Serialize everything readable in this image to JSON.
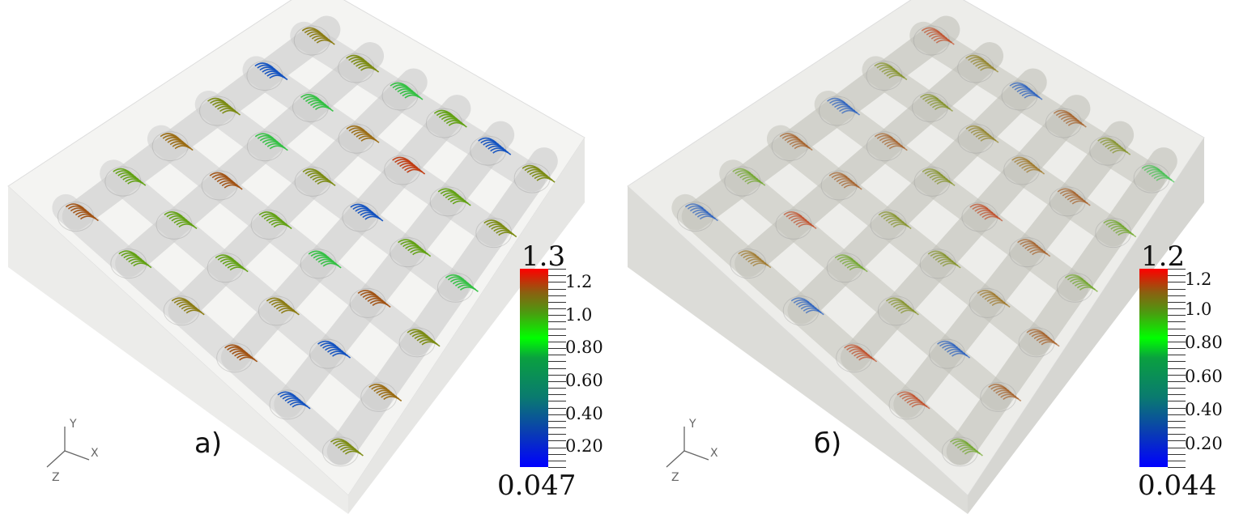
{
  "panels": [
    {
      "label": "а)",
      "colorbar": {
        "max": "1.3",
        "min": "0.047",
        "ticks": [
          "1.2",
          "1.0",
          "0.80",
          "0.60",
          "0.40",
          "0.20"
        ]
      }
    },
    {
      "label": "б)",
      "colorbar": {
        "max": "1.2",
        "min": "0.044",
        "ticks": [
          "1.2",
          "1.0",
          "0.80",
          "0.60",
          "0.40",
          "0.20"
        ]
      }
    }
  ],
  "axes": {
    "x": "X",
    "y": "Y",
    "z": "Z"
  },
  "colormap": [
    "#0000ff",
    "#0a7a70",
    "#00ff00",
    "#8a6010",
    "#ff0000"
  ]
}
